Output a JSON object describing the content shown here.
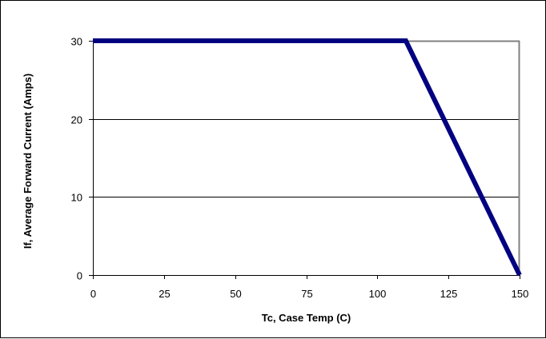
{
  "chart_data": {
    "type": "line",
    "title": "",
    "xlabel": "Tc, Case Temp (C)",
    "ylabel": "If, Average Forward Current (Amps)",
    "xlim": [
      0,
      150
    ],
    "ylim": [
      0,
      30
    ],
    "xticks": [
      0,
      25,
      50,
      75,
      100,
      125,
      150
    ],
    "yticks": [
      0,
      10,
      20,
      30
    ],
    "xtick_labels": [
      "0",
      "25",
      "50",
      "75",
      "100",
      "125",
      "150"
    ],
    "ytick_labels": [
      "0",
      "10",
      "20",
      "30"
    ],
    "grid": "horizontal",
    "legend": "none",
    "series": [
      {
        "color": "#000080",
        "x": [
          0,
          110,
          150
        ],
        "y": [
          30,
          30,
          0
        ]
      }
    ],
    "colors": {
      "series_line": "#000080",
      "plot_border": "#808080",
      "gridline": "#000000"
    }
  }
}
